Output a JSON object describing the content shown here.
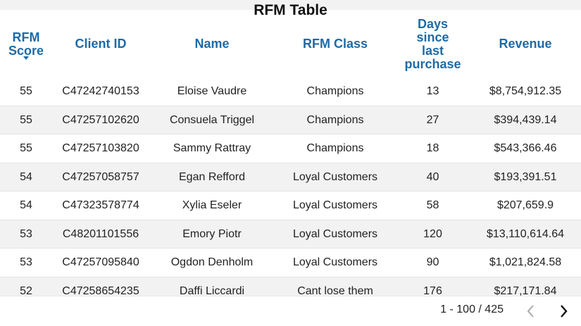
{
  "header": {
    "title": "RFM Table"
  },
  "table": {
    "columns": [
      "RFM Score",
      "Client ID",
      "Name",
      "RFM Class",
      "Days since last purchase",
      "Revenue"
    ],
    "rows": [
      [
        "55",
        "C47242740153",
        "Eloise Vaudre",
        "Champions",
        "13",
        "$8,754,912.35"
      ],
      [
        "55",
        "C47257102620",
        "Consuela Triggel",
        "Champions",
        "27",
        "$394,439.14"
      ],
      [
        "55",
        "C47257103820",
        "Sammy Rattray",
        "Champions",
        "18",
        "$543,366.46"
      ],
      [
        "54",
        "C47257058757",
        "Egan Refford",
        "Loyal Customers",
        "40",
        "$193,391.51"
      ],
      [
        "54",
        "C47323578774",
        "Xylia Eseler",
        "Loyal Customers",
        "58",
        "$207,659.9"
      ],
      [
        "53",
        "C48201101556",
        "Emory Piotr",
        "Loyal Customers",
        "120",
        "$13,110,614.64"
      ],
      [
        "53",
        "C47257095840",
        "Ogdon Denholm",
        "Loyal Customers",
        "90",
        "$1,021,824.58"
      ],
      [
        "52",
        "C47258654235",
        "Daffi Liccardi",
        "Cant lose them",
        "176",
        "$217,171.84"
      ]
    ]
  },
  "pagination": {
    "range": "1 - 100 / 425"
  }
}
